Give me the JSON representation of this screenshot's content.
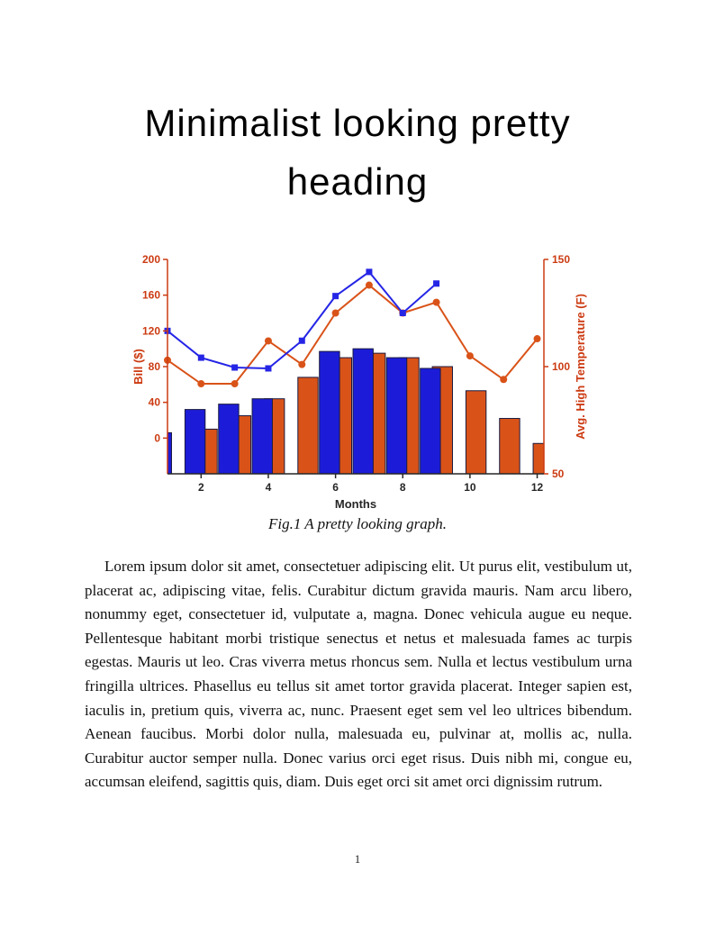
{
  "page": {
    "heading": "Minimalist looking pretty heading",
    "caption": "Fig.1 A pretty looking graph.",
    "body": "Lorem ipsum dolor sit amet, consectetuer adipiscing elit. Ut purus elit, vestibulum ut, placerat ac, adipiscing vitae, felis. Curabitur dictum gravida mauris. Nam arcu libero, nonummy eget, consectetuer id, vulputate a, magna. Donec vehicula augue eu neque. Pellentesque habitant morbi tristique senectus et netus et malesuada fames ac turpis egestas. Mauris ut leo. Cras viverra metus rhoncus sem. Nulla et lectus vestibulum urna fringilla ultrices. Phasellus eu tellus sit amet tortor gravida placerat. Integer sapien est, iaculis in, pretium quis, viverra ac, nunc. Praesent eget sem vel leo ultrices bibendum. Aenean faucibus. Morbi dolor nulla, malesuada eu, pulvinar at, mollis ac, nulla. Curabitur auctor semper nulla. Donec varius orci eget risus. Duis nibh mi, congue eu, accumsan eleifend, sagittis quis, diam. Duis eget orci sit amet orci dignissim rutrum.",
    "page_number": "1"
  },
  "chart_data": {
    "type": "bar",
    "subtype": "grouped bars with two overlaid marker lines, dual y-axes",
    "title": "",
    "xlabel": "Months",
    "ylabel_left": "Bill ($)",
    "ylabel_right": "Avg. High Temperature (F)",
    "x_range": [
      1.0,
      12.2
    ],
    "left_range": [
      -40,
      200
    ],
    "right_range": [
      50,
      150
    ],
    "x_ticks": [
      2,
      4,
      6,
      8,
      10,
      12
    ],
    "left_ticks": [
      0,
      40,
      80,
      120,
      160,
      200
    ],
    "right_ticks": [
      50,
      100,
      150
    ],
    "months": [
      1,
      2,
      3,
      4,
      5,
      6,
      7,
      8,
      9,
      10,
      11,
      12
    ],
    "bar_width": 0.6,
    "bar_offset": 0.18,
    "bars_baseline": "plot_bottom",
    "bars": {
      "stroke": "#1a1a40",
      "blue": {
        "name": "bill-bars-blue",
        "axis": "left",
        "color": "#1c1cd8",
        "values": [
          6,
          32,
          38,
          44,
          null,
          97,
          100,
          90,
          78,
          null,
          null,
          null
        ]
      },
      "orange": {
        "name": "bill-bars-orange",
        "axis": "left",
        "color": "#d95319",
        "values": [
          null,
          10,
          25,
          44,
          68,
          90,
          95,
          90,
          80,
          53,
          22,
          -6
        ]
      }
    },
    "lines": {
      "blue": {
        "name": "bill-line",
        "axis": "left",
        "marker": "square",
        "color": "#2525e6",
        "values": [
          120,
          90,
          79,
          78,
          109,
          159,
          186,
          140,
          173,
          null,
          null,
          null
        ]
      },
      "orange": {
        "name": "temperature-line",
        "axis": "right",
        "marker": "circle",
        "color": "#d95319",
        "values": [
          103,
          92,
          92,
          112,
          101,
          125,
          138,
          125,
          130,
          105,
          94,
          113
        ]
      }
    },
    "colors": {
      "left_axis": "#cc3b12",
      "right_axis": "#cc3b12",
      "bottom_axis": "#262626",
      "x_tick_label": "#262626"
    },
    "grid": false,
    "legend": "none"
  }
}
